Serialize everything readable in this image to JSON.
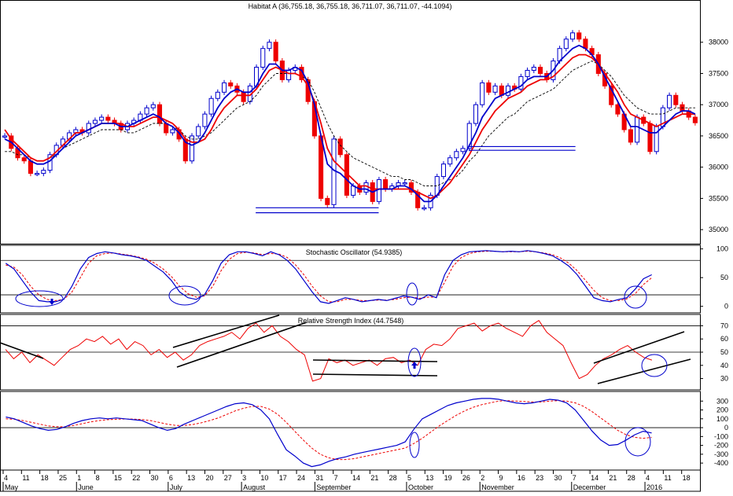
{
  "chart_data": [
    {
      "type": "candlestick",
      "title": "Habitat A (36,755.18, 36,755.18, 36,711.07, 36,711.07, -44.1094)",
      "ylim": [
        34800,
        38500
      ],
      "yticks": [
        35000,
        35500,
        36000,
        36500,
        37000,
        37500,
        38000
      ],
      "grid": false,
      "colors": {
        "up": "#0000cc",
        "down": "#ee0000",
        "ma_short": "#0000cc",
        "ma_long": "#ee0000",
        "ma_trend": "#000000"
      },
      "series": [
        {
          "name": "price_close",
          "values": [
            36500,
            36300,
            36150,
            36100,
            35900,
            35900,
            35950,
            36200,
            36350,
            36450,
            36550,
            36600,
            36550,
            36700,
            36750,
            36800,
            36750,
            36700,
            36600,
            36700,
            36750,
            36850,
            36950,
            37000,
            36700,
            36550,
            36600,
            36450,
            36100,
            36500,
            36650,
            36850,
            37100,
            37200,
            37350,
            37300,
            37200,
            37050,
            37300,
            37600,
            37900,
            38000,
            37700,
            37400,
            37550,
            37600,
            37400,
            37050,
            36500,
            35500,
            35400,
            36450,
            36200,
            35550,
            35700,
            35600,
            35750,
            35450,
            35800,
            35650,
            35700,
            35750,
            35750,
            35600,
            35350,
            35350,
            35550,
            35850,
            36050,
            36150,
            36250,
            36300,
            36700,
            37000,
            37350,
            37200,
            37300,
            37150,
            37300,
            37250,
            37450,
            37550,
            37600,
            37500,
            37400,
            37700,
            37900,
            38050,
            38150,
            38050,
            37900,
            37800,
            37500,
            37300,
            37000,
            36850,
            36600,
            36400,
            36800,
            36700,
            36250,
            36650,
            36950,
            37150,
            37000,
            36900,
            36800,
            36711
          ]
        }
      ],
      "ma_short": [
        36450,
        36400,
        36300,
        36200,
        36100,
        36050,
        36050,
        36100,
        36200,
        36300,
        36400,
        36500,
        36550,
        36600,
        36650,
        36700,
        36700,
        36700,
        36650,
        36650,
        36700,
        36750,
        36800,
        36850,
        36800,
        36700,
        36650,
        36550,
        36400,
        36350,
        36400,
        36550,
        36750,
        36950,
        37100,
        37200,
        37250,
        37200,
        37200,
        37300,
        37500,
        37650,
        37650,
        37550,
        37550,
        37600,
        37550,
        37350,
        37000,
        36500,
        36050,
        35950,
        35900,
        35800,
        35700,
        35650,
        35650,
        35600,
        35650,
        35650,
        35650,
        35700,
        35700,
        35650,
        35550,
        35450,
        35450,
        35550,
        35700,
        35850,
        36000,
        36150,
        36350,
        36550,
        36800,
        36950,
        37100,
        37150,
        37200,
        37250,
        37300,
        37400,
        37450,
        37450,
        37450,
        37550,
        37700,
        37800,
        37900,
        37950,
        37900,
        37800,
        37650,
        37450,
        37250,
        37050,
        36850,
        36650,
        36650,
        36600,
        36550,
        36550,
        36650,
        36750,
        36850,
        36900,
        36900,
        36850
      ],
      "ma_long": [
        36600,
        36450,
        36350,
        36250,
        36150,
        36100,
        36100,
        36150,
        36250,
        36350,
        36450,
        36550,
        36550,
        36600,
        36650,
        36700,
        36700,
        36700,
        36700,
        36650,
        36650,
        36700,
        36750,
        36800,
        36800,
        36750,
        36700,
        36600,
        36450,
        36400,
        36400,
        36450,
        36600,
        36800,
        36950,
        37050,
        37150,
        37150,
        37150,
        37250,
        37400,
        37550,
        37600,
        37550,
        37500,
        37500,
        37450,
        37300,
        37050,
        36700,
        36300,
        36100,
        36000,
        35900,
        35800,
        35700,
        35700,
        35650,
        35650,
        35650,
        35650,
        35650,
        35650,
        35650,
        35600,
        35550,
        35500,
        35550,
        35650,
        35750,
        35900,
        36050,
        36200,
        36400,
        36600,
        36750,
        36900,
        37000,
        37100,
        37150,
        37200,
        37300,
        37350,
        37400,
        37400,
        37450,
        37550,
        37650,
        37750,
        37800,
        37800,
        37750,
        37650,
        37500,
        37350,
        37200,
        37000,
        36850,
        36800,
        36750,
        36700,
        36650,
        36700,
        36750,
        36800,
        36850,
        36850,
        36850
      ],
      "ma_trend": [
        36250,
        36250,
        36200,
        36200,
        36150,
        36100,
        36100,
        36150,
        36200,
        36300,
        36350,
        36400,
        36450,
        36500,
        36550,
        36600,
        36600,
        36600,
        36600,
        36550,
        36550,
        36600,
        36650,
        36700,
        36700,
        36700,
        36650,
        36600,
        36500,
        36450,
        36450,
        36500,
        36550,
        36650,
        36750,
        36850,
        36950,
        37000,
        37050,
        37150,
        37300,
        37400,
        37500,
        37500,
        37500,
        37500,
        37450,
        37400,
        37200,
        36950,
        36700,
        36500,
        36350,
        36250,
        36150,
        36100,
        36050,
        36000,
        35950,
        35900,
        35850,
        35850,
        35800,
        35800,
        35750,
        35700,
        35700,
        35700,
        35750,
        35800,
        35850,
        35950,
        36100,
        36200,
        36350,
        36500,
        36600,
        36700,
        36800,
        36850,
        36950,
        37050,
        37100,
        37150,
        37200,
        37250,
        37350,
        37450,
        37550,
        37600,
        37650,
        37700,
        37650,
        37550,
        37450,
        37300,
        37150,
        37050,
        36950,
        36900,
        36850,
        36850,
        36850,
        36900,
        36950,
        36950,
        36950,
        36950
      ],
      "support_lines": [
        {
          "from_index": 62,
          "to_index": 92,
          "value": 35350
        },
        {
          "from_index": 62,
          "to_index": 92,
          "value": 35270
        },
        {
          "from_index": 114,
          "to_index": 140,
          "value": 36330
        },
        {
          "from_index": 114,
          "to_index": 140,
          "value": 36270
        }
      ]
    },
    {
      "type": "line",
      "title": "Stochastic Oscillator (54.9385)",
      "ylim": [
        -10,
        105
      ],
      "yticks": [
        0,
        50,
        100
      ],
      "hlines": [
        20,
        80
      ],
      "series": [
        {
          "name": "%K",
          "color": "#0000cc",
          "values": [
            75,
            65,
            45,
            25,
            10,
            8,
            8,
            12,
            35,
            65,
            85,
            92,
            95,
            93,
            90,
            88,
            85,
            80,
            70,
            60,
            45,
            25,
            15,
            12,
            20,
            45,
            75,
            90,
            95,
            95,
            92,
            88,
            95,
            90,
            80,
            65,
            45,
            25,
            8,
            5,
            10,
            15,
            12,
            8,
            10,
            12,
            10,
            14,
            18,
            16,
            12,
            20,
            15,
            55,
            80,
            90,
            95,
            96,
            97,
            96,
            95,
            96,
            95,
            97,
            95,
            92,
            88,
            80,
            70,
            55,
            35,
            15,
            10,
            8,
            12,
            15,
            30,
            48,
            55
          ]
        },
        {
          "name": "%D",
          "color": "#ee0000",
          "values": [
            72,
            68,
            55,
            35,
            20,
            12,
            10,
            12,
            25,
            50,
            75,
            88,
            92,
            93,
            91,
            89,
            86,
            82,
            75,
            65,
            52,
            35,
            22,
            16,
            18,
            35,
            62,
            82,
            92,
            94,
            93,
            90,
            92,
            91,
            85,
            72,
            55,
            35,
            18,
            8,
            8,
            12,
            12,
            10,
            10,
            11,
            11,
            12,
            15,
            16,
            14,
            16,
            16,
            42,
            70,
            85,
            92,
            95,
            96,
            96,
            95,
            95,
            95,
            96,
            95,
            93,
            90,
            84,
            75,
            62,
            45,
            28,
            15,
            10,
            10,
            13,
            22,
            38,
            50
          ]
        }
      ],
      "annotation_circles": 6
    },
    {
      "type": "line",
      "title": "Relative Strength Index (44.7548)",
      "ylim": [
        22,
        78
      ],
      "yticks": [
        30,
        40,
        50,
        60,
        70
      ],
      "hlines": [
        70,
        50
      ],
      "series": [
        {
          "name": "RSI",
          "color": "#ee0000",
          "values": [
            52,
            45,
            50,
            42,
            48,
            44,
            40,
            46,
            52,
            55,
            60,
            58,
            62,
            56,
            60,
            52,
            58,
            55,
            48,
            52,
            46,
            50,
            44,
            48,
            55,
            58,
            60,
            62,
            65,
            60,
            68,
            72,
            65,
            70,
            62,
            58,
            52,
            48,
            28,
            30,
            45,
            42,
            44,
            40,
            42,
            44,
            40,
            45,
            46,
            42,
            44,
            40,
            52,
            56,
            55,
            60,
            68,
            70,
            72,
            66,
            70,
            72,
            68,
            65,
            62,
            70,
            74,
            65,
            60,
            55,
            42,
            30,
            33,
            40,
            45,
            48,
            52,
            55,
            50,
            46,
            44
          ]
        }
      ],
      "trend_lines": 6
    },
    {
      "type": "line",
      "title": "",
      "ylim": [
        -470,
        400
      ],
      "yticks": [
        -400,
        -300,
        -200,
        -100,
        0,
        100,
        200,
        300
      ],
      "hlines": [
        0
      ],
      "series": [
        {
          "name": "MACD",
          "color": "#0000cc",
          "values": [
            120,
            100,
            60,
            20,
            -10,
            -30,
            -20,
            10,
            50,
            80,
            100,
            110,
            100,
            110,
            100,
            90,
            80,
            40,
            0,
            -30,
            -10,
            40,
            80,
            120,
            160,
            200,
            240,
            270,
            280,
            260,
            200,
            100,
            -80,
            -250,
            -320,
            -400,
            -440,
            -420,
            -380,
            -350,
            -330,
            -300,
            -280,
            -260,
            -240,
            -220,
            -200,
            -160,
            -20,
            100,
            150,
            200,
            250,
            280,
            300,
            320,
            330,
            330,
            320,
            300,
            280,
            270,
            280,
            300,
            320,
            310,
            280,
            200,
            80,
            -40,
            -140,
            -200,
            -190,
            -140,
            -80,
            -40,
            -60
          ]
        },
        {
          "name": "Signal",
          "color": "#ee0000",
          "values": [
            100,
            95,
            80,
            60,
            40,
            20,
            10,
            10,
            25,
            45,
            65,
            80,
            90,
            95,
            98,
            96,
            92,
            80,
            60,
            40,
            25,
            25,
            35,
            55,
            80,
            110,
            150,
            190,
            220,
            240,
            240,
            210,
            150,
            60,
            -40,
            -140,
            -230,
            -300,
            -340,
            -360,
            -360,
            -350,
            -330,
            -310,
            -290,
            -270,
            -250,
            -230,
            -180,
            -120,
            -50,
            20,
            80,
            140,
            190,
            230,
            260,
            280,
            300,
            305,
            300,
            295,
            290,
            290,
            300,
            305,
            300,
            280,
            240,
            180,
            110,
            40,
            -30,
            -80,
            -110,
            -120,
            -110
          ]
        }
      ],
      "annotation_circles": 2
    }
  ],
  "x_axis": {
    "day_labels": [
      "4",
      "11",
      "18",
      "25",
      "1",
      "8",
      "15",
      "22",
      "30",
      "6",
      "13",
      "20",
      "27",
      "3",
      "10",
      "17",
      "24",
      "31",
      "7",
      "14",
      "21",
      "28",
      "5",
      "13",
      "19",
      "26",
      "2",
      "9",
      "16",
      "23",
      "30",
      "7",
      "14",
      "21",
      "28",
      "4",
      "11",
      "18"
    ],
    "month_labels": [
      "May",
      "June",
      "July",
      "August",
      "September",
      "October",
      "November",
      "December",
      "2016"
    ]
  }
}
